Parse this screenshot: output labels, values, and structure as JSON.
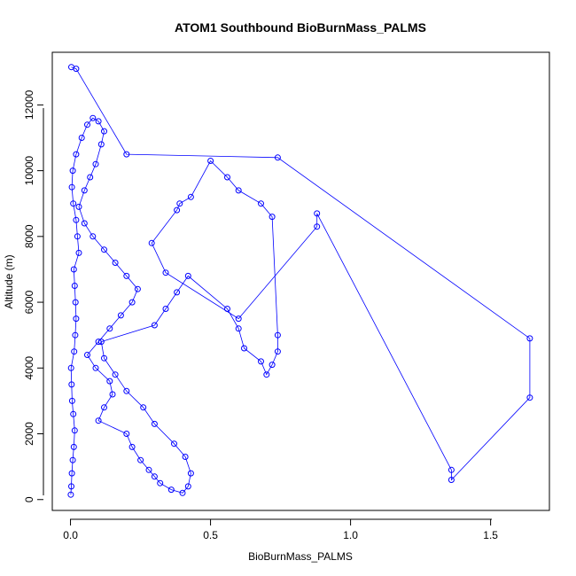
{
  "chart_data": {
    "type": "scatter",
    "title": "ATOM1 Southbound BioBurnMass_PALMS",
    "xlabel": "BioBurnMass_PALMS",
    "ylabel": "Altitude (m)",
    "xlim": [
      -0.065,
      1.71
    ],
    "ylim": [
      -330,
      13600
    ],
    "x_ticks": [
      0.0,
      0.5,
      1.0,
      1.5
    ],
    "x_tick_labels": [
      "0.0",
      "0.5",
      "1.0",
      "1.5"
    ],
    "y_ticks": [
      0,
      2000,
      4000,
      6000,
      8000,
      10000,
      12000
    ],
    "y_tick_labels": [
      "0",
      "2000",
      "4000",
      "6000",
      "8000",
      "10000",
      "12000"
    ],
    "grid": false,
    "color": "#0000ff",
    "marker": "open-circle",
    "connected": true,
    "series": [
      {
        "x": [
          0.001,
          0.003,
          0.005,
          0.008,
          0.012,
          0.015,
          0.01,
          0.006,
          0.004,
          0.002,
          0.013,
          0.017,
          0.02,
          0.018,
          0.015,
          0.012,
          0.03,
          0.025,
          0.02,
          0.01,
          0.005,
          0.008,
          0.02,
          0.04,
          0.06,
          0.08,
          0.1,
          0.12,
          0.11,
          0.09,
          0.07,
          0.05,
          0.03,
          0.05,
          0.08,
          0.12,
          0.16,
          0.2,
          0.24,
          0.22,
          0.18,
          0.14,
          0.1,
          0.06,
          0.09,
          0.14,
          0.15,
          0.12,
          0.1,
          0.2,
          0.22,
          0.25,
          0.28,
          0.3,
          0.32,
          0.36,
          0.4,
          0.42,
          0.43,
          0.41,
          0.37,
          0.3,
          0.26,
          0.2,
          0.16,
          0.12,
          0.11,
          0.3,
          0.34,
          0.38,
          0.42,
          0.56,
          0.6,
          0.62,
          0.68,
          0.7,
          0.72,
          0.74,
          0.74,
          0.72,
          0.68,
          0.6,
          0.56,
          0.5,
          0.43,
          0.39,
          0.38,
          0.29,
          0.34,
          0.6,
          0.88,
          0.88,
          1.36,
          1.36,
          1.64,
          1.64,
          0.74,
          0.2,
          0.02,
          0.003
        ],
        "y": [
          150,
          400,
          800,
          1200,
          1600,
          2100,
          2600,
          3000,
          3500,
          4000,
          4500,
          5000,
          5500,
          6000,
          6500,
          7000,
          7500,
          8000,
          8500,
          9000,
          9500,
          10000,
          10500,
          11000,
          11400,
          11600,
          11500,
          11200,
          10800,
          10200,
          9800,
          9400,
          8900,
          8400,
          8000,
          7600,
          7200,
          6800,
          6400,
          6000,
          5600,
          5200,
          4800,
          4400,
          4000,
          3600,
          3200,
          2800,
          2400,
          2000,
          1600,
          1200,
          900,
          700,
          500,
          300,
          200,
          400,
          800,
          1300,
          1700,
          2300,
          2800,
          3300,
          3800,
          4300,
          4800,
          5300,
          5800,
          6300,
          6800,
          5800,
          5200,
          4600,
          4200,
          3800,
          4100,
          4500,
          5000,
          8600,
          9000,
          9400,
          9800,
          10300,
          9200,
          9000,
          8800,
          7800,
          6900,
          5500,
          8300,
          8700,
          900,
          600,
          3100,
          4900,
          10400,
          10500,
          13100,
          13150
        ]
      }
    ]
  }
}
